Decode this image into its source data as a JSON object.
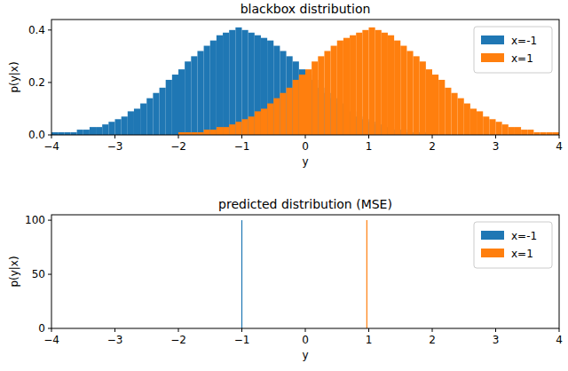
{
  "chart_data": [
    {
      "type": "histogram",
      "title": "blackbox distribution",
      "x_label": "y",
      "y_label": "p(y|x)",
      "xlim": [
        -4,
        4
      ],
      "xticks": [
        -4,
        -3,
        -2,
        -1,
        0,
        1,
        2,
        3,
        4
      ],
      "ylim": [
        0,
        0.44
      ],
      "yticks": [
        {
          "value": 0,
          "label": "0.0"
        },
        0.2,
        0.4
      ],
      "legend": "upper right",
      "bins": [
        -4,
        -3.9,
        -3.8,
        -3.7,
        -3.6,
        -3.5,
        -3.4,
        -3.3,
        -3.2,
        -3.1,
        -3,
        -2.9,
        -2.8,
        -2.7,
        -2.6,
        -2.5,
        -2.4,
        -2.3,
        -2.2,
        -2.1,
        -2,
        -1.9,
        -1.8,
        -1.7,
        -1.6,
        -1.5,
        -1.4,
        -1.3,
        -1.2,
        -1.1,
        -1,
        -0.9,
        -0.8,
        -0.7,
        -0.6,
        -0.5,
        -0.4,
        -0.3,
        -0.2,
        -0.1,
        0,
        0.1,
        0.2,
        0.3,
        0.4,
        0.5,
        0.6,
        0.7,
        0.8,
        0.9,
        1,
        1.1,
        1.2,
        1.3,
        1.4,
        1.5,
        1.6,
        1.7,
        1.8,
        1.9,
        2,
        2.1,
        2.2,
        2.3,
        2.4,
        2.5,
        2.6,
        2.7,
        2.8,
        2.9,
        3,
        3.1,
        3.2,
        3.3,
        3.4,
        3.5,
        3.6,
        3.7,
        3.8,
        3.9,
        4
      ],
      "series": [
        {
          "name": "x=-1",
          "color": "#1f77b4",
          "values": [
            0.01,
            0.01,
            0.01,
            0.01,
            0.02,
            0.02,
            0.03,
            0.03,
            0.04,
            0.05,
            0.06,
            0.07,
            0.09,
            0.1,
            0.12,
            0.14,
            0.16,
            0.18,
            0.21,
            0.23,
            0.25,
            0.28,
            0.3,
            0.32,
            0.34,
            0.36,
            0.38,
            0.39,
            0.4,
            0.41,
            0.4,
            0.39,
            0.38,
            0.37,
            0.36,
            0.34,
            0.32,
            0.3,
            0.28,
            0.25,
            0.23,
            0.21,
            0.18,
            0.16,
            0.14,
            0.12,
            0.1,
            0.09,
            0.07,
            0.06,
            0.05,
            0.04,
            0.03,
            0.03,
            0.02,
            0.02,
            0.01,
            0.01,
            0.01,
            0.01,
            0,
            0,
            0,
            0,
            0,
            0,
            0,
            0,
            0,
            0,
            0,
            0,
            0,
            0,
            0,
            0,
            0,
            0,
            0,
            0
          ]
        },
        {
          "name": "x=1",
          "color": "#ff7f0e",
          "values": [
            0,
            0,
            0,
            0,
            0,
            0,
            0,
            0,
            0,
            0,
            0,
            0,
            0,
            0,
            0,
            0,
            0,
            0,
            0,
            0,
            0.01,
            0.01,
            0.01,
            0.01,
            0.02,
            0.02,
            0.03,
            0.03,
            0.04,
            0.05,
            0.06,
            0.07,
            0.09,
            0.1,
            0.12,
            0.14,
            0.16,
            0.18,
            0.21,
            0.23,
            0.25,
            0.28,
            0.3,
            0.32,
            0.34,
            0.36,
            0.37,
            0.38,
            0.39,
            0.4,
            0.41,
            0.4,
            0.39,
            0.38,
            0.36,
            0.34,
            0.32,
            0.3,
            0.28,
            0.25,
            0.23,
            0.21,
            0.18,
            0.16,
            0.14,
            0.12,
            0.1,
            0.09,
            0.07,
            0.06,
            0.05,
            0.04,
            0.03,
            0.03,
            0.02,
            0.02,
            0.01,
            0.01,
            0.01,
            0.01
          ]
        }
      ]
    },
    {
      "type": "spike",
      "title": "predicted distribution (MSE)",
      "x_label": "y",
      "y_label": "p(y|x)",
      "xlim": [
        -4,
        4
      ],
      "xticks": [
        -4,
        -3,
        -2,
        -1,
        0,
        1,
        2,
        3,
        4
      ],
      "ylim": [
        0,
        105
      ],
      "yticks": [
        0,
        50,
        100
      ],
      "legend": "upper right",
      "series": [
        {
          "name": "x=-1",
          "color": "#1f77b4",
          "x": [
            -1
          ],
          "values": [
            100
          ]
        },
        {
          "name": "x=1",
          "color": "#ff7f0e",
          "x": [
            0.97
          ],
          "values": [
            100
          ]
        }
      ]
    }
  ]
}
